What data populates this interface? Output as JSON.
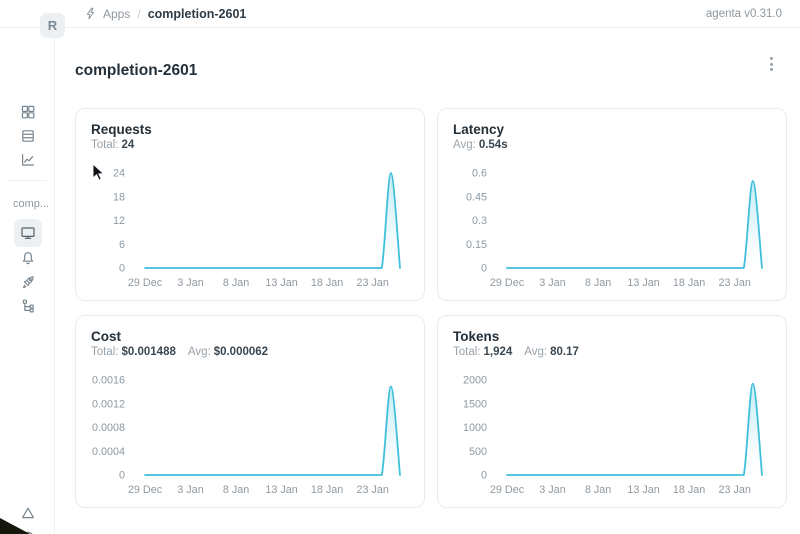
{
  "app": {
    "version_label": "agenta v0.31.0"
  },
  "breadcrumb": {
    "icon": "lightning-icon",
    "items": [
      "Apps",
      "completion-2601"
    ],
    "separator": "/"
  },
  "sidebar": {
    "workspace_initial": "R",
    "app_group_label": "comp...",
    "top_icons": [
      "apps-grid-icon",
      "test-sets-icon",
      "observability-chart-icon"
    ],
    "app_icons": [
      "playground-monitor-icon",
      "evaluations-bell-icon",
      "deployments-rocket-icon",
      "traces-tree-icon"
    ],
    "bottom_icons": [
      "alerts-triangle-icon",
      "help-circle-icon"
    ]
  },
  "page": {
    "title": "completion-2601",
    "menu_icon": "kebab-menu-icon"
  },
  "accent": {
    "line_color": "#3fbfdb",
    "fill_color_top": "rgba(63,191,219,0.30)"
  },
  "chart_data": [
    {
      "type": "area",
      "title": "Requests",
      "stats": [
        {
          "label": "Total:",
          "value": "24"
        }
      ],
      "x_tick_labels": [
        "29 Dec",
        "3 Jan",
        "8 Jan",
        "13 Jan",
        "18 Jan",
        "23 Jan"
      ],
      "x_tick_day_indices": [
        0,
        5,
        10,
        15,
        20,
        25
      ],
      "values": [
        0,
        0,
        0,
        0,
        0,
        0,
        0,
        0,
        0,
        0,
        0,
        0,
        0,
        0,
        0,
        0,
        0,
        0,
        0,
        0,
        0,
        0,
        0,
        0,
        0,
        0,
        0,
        24,
        0
      ],
      "y_max": 24,
      "y_ticks": [
        {
          "v": 24,
          "label": "24"
        },
        {
          "v": 18,
          "label": "18"
        },
        {
          "v": 12,
          "label": "12"
        },
        {
          "v": 6,
          "label": "6"
        },
        {
          "v": 0,
          "label": "0"
        }
      ],
      "grid": false,
      "legend": false
    },
    {
      "type": "area",
      "title": "Latency",
      "stats": [
        {
          "label": "Avg:",
          "value": "0.54s"
        }
      ],
      "x_tick_labels": [
        "29 Dec",
        "3 Jan",
        "8 Jan",
        "13 Jan",
        "18 Jan",
        "23 Jan"
      ],
      "x_tick_day_indices": [
        0,
        5,
        10,
        15,
        20,
        25
      ],
      "values": [
        0,
        0,
        0,
        0,
        0,
        0,
        0,
        0,
        0,
        0,
        0,
        0,
        0,
        0,
        0,
        0,
        0,
        0,
        0,
        0,
        0,
        0,
        0,
        0,
        0,
        0,
        0,
        0.55,
        0
      ],
      "y_max": 0.6,
      "y_ticks": [
        {
          "v": 0.6,
          "label": "0.6"
        },
        {
          "v": 0.45,
          "label": "0.45"
        },
        {
          "v": 0.3,
          "label": "0.3"
        },
        {
          "v": 0.15,
          "label": "0.15"
        },
        {
          "v": 0,
          "label": "0"
        }
      ],
      "grid": false,
      "legend": false
    },
    {
      "type": "area",
      "title": "Cost",
      "stats": [
        {
          "label": "Total:",
          "value": "$0.001488"
        },
        {
          "label": "Avg:",
          "value": "$0.000062"
        }
      ],
      "x_tick_labels": [
        "29 Dec",
        "3 Jan",
        "8 Jan",
        "13 Jan",
        "18 Jan",
        "23 Jan"
      ],
      "x_tick_day_indices": [
        0,
        5,
        10,
        15,
        20,
        25
      ],
      "values": [
        0,
        0,
        0,
        0,
        0,
        0,
        0,
        0,
        0,
        0,
        0,
        0,
        0,
        0,
        0,
        0,
        0,
        0,
        0,
        0,
        0,
        0,
        0,
        0,
        0,
        0,
        0,
        0.00149,
        0
      ],
      "y_max": 0.0016,
      "y_ticks": [
        {
          "v": 0.0016,
          "label": "0.0016"
        },
        {
          "v": 0.0012,
          "label": "0.0012"
        },
        {
          "v": 0.0008,
          "label": "0.0008"
        },
        {
          "v": 0.0004,
          "label": "0.0004"
        },
        {
          "v": 0,
          "label": "0"
        }
      ],
      "grid": false,
      "legend": false
    },
    {
      "type": "area",
      "title": "Tokens",
      "stats": [
        {
          "label": "Total:",
          "value": "1,924"
        },
        {
          "label": "Avg:",
          "value": "80.17"
        }
      ],
      "x_tick_labels": [
        "29 Dec",
        "3 Jan",
        "8 Jan",
        "13 Jan",
        "18 Jan",
        "23 Jan"
      ],
      "x_tick_day_indices": [
        0,
        5,
        10,
        15,
        20,
        25
      ],
      "values": [
        0,
        0,
        0,
        0,
        0,
        0,
        0,
        0,
        0,
        0,
        0,
        0,
        0,
        0,
        0,
        0,
        0,
        0,
        0,
        0,
        0,
        0,
        0,
        0,
        0,
        0,
        0,
        1924,
        0
      ],
      "y_max": 2000,
      "y_ticks": [
        {
          "v": 2000,
          "label": "2000"
        },
        {
          "v": 1500,
          "label": "1500"
        },
        {
          "v": 1000,
          "label": "1000"
        },
        {
          "v": 500,
          "label": "500"
        },
        {
          "v": 0,
          "label": "0"
        }
      ],
      "grid": false,
      "legend": false
    }
  ]
}
